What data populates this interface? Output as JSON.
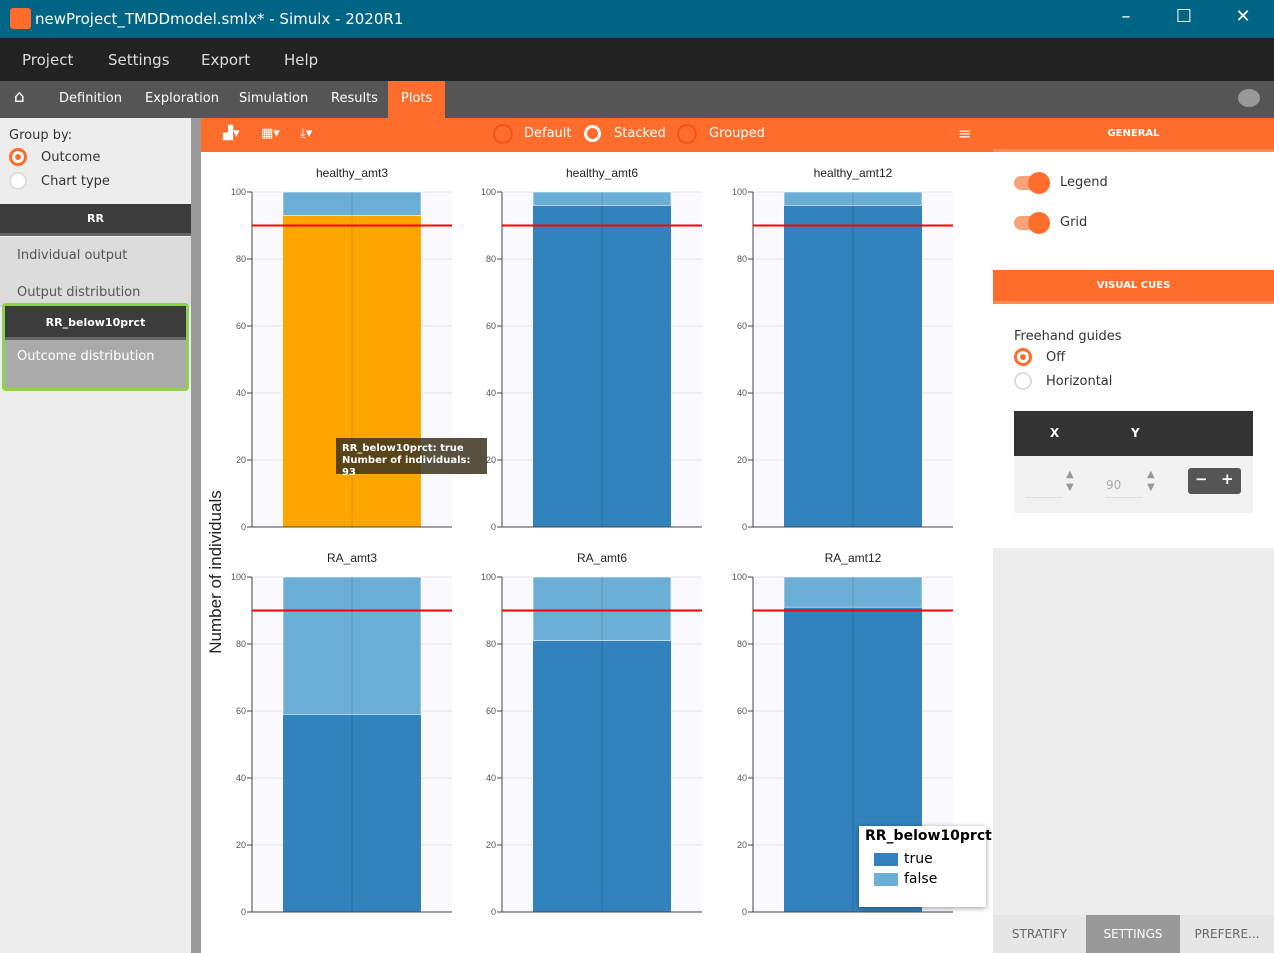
{
  "window": {
    "title": "newProject_TMDDmodel.smlx* - Simulx - 2020R1"
  },
  "menu": [
    "Project",
    "Settings",
    "Export",
    "Help"
  ],
  "tabs": [
    "Definition",
    "Exploration",
    "Simulation",
    "Results",
    "Plots"
  ],
  "active_tab": "Plots",
  "left": {
    "group_by_label": "Group by:",
    "group_options": [
      "Outcome",
      "Chart type"
    ],
    "selected": "Outcome",
    "section": "RR",
    "items": [
      "Individual output",
      "Output distribution"
    ],
    "subsection": "RR_below10prct",
    "subitem": "Outcome distribution"
  },
  "toolbar": {
    "modes": [
      "Default",
      "Stacked",
      "Grouped"
    ],
    "selected": "Stacked"
  },
  "right": {
    "general": "GENERAL",
    "legend": "Legend",
    "grid": "Grid",
    "legend_on": true,
    "grid_on": true,
    "visual_cues": "VISUAL CUES",
    "freehand": "Freehand guides",
    "freehand_options": [
      "Off",
      "Horizontal"
    ],
    "freehand_selected": "Off",
    "x_header": "X",
    "y_header": "Y",
    "x_value": "",
    "y_value": "90",
    "minus": "−",
    "plus": "+"
  },
  "bottom_tabs": [
    "STRATIFY",
    "SETTINGS",
    "PREFERE..."
  ],
  "active_bottom_tab": "SETTINGS",
  "tooltip": {
    "line1": "RR_below10prct: true",
    "line2": "Number of individuals: 93"
  },
  "chart_data": {
    "type": "bar",
    "stacked": true,
    "ylabel": "Number of individuals",
    "ylim": [
      0,
      100
    ],
    "yticks": [
      0,
      20,
      40,
      60,
      80,
      100
    ],
    "reference_line": 90,
    "reference_color": "#ff0000",
    "grid": true,
    "legend": {
      "title": "RR_below10prct",
      "entries": [
        "true",
        "false"
      ],
      "placement": "bottom-right"
    },
    "colors": {
      "true": "#3282bd",
      "false": "#6baed6",
      "highlight": "#ffa500"
    },
    "panels": [
      {
        "title": "healthy_amt3",
        "true": 93,
        "false": 7
      },
      {
        "title": "healthy_amt6",
        "true": 96,
        "false": 4
      },
      {
        "title": "healthy_amt12",
        "true": 96,
        "false": 4
      },
      {
        "title": "RA_amt3",
        "true": 59,
        "false": 41
      },
      {
        "title": "RA_amt6",
        "true": 81,
        "false": 19
      },
      {
        "title": "RA_amt12",
        "true": 91,
        "false": 9
      }
    ]
  }
}
